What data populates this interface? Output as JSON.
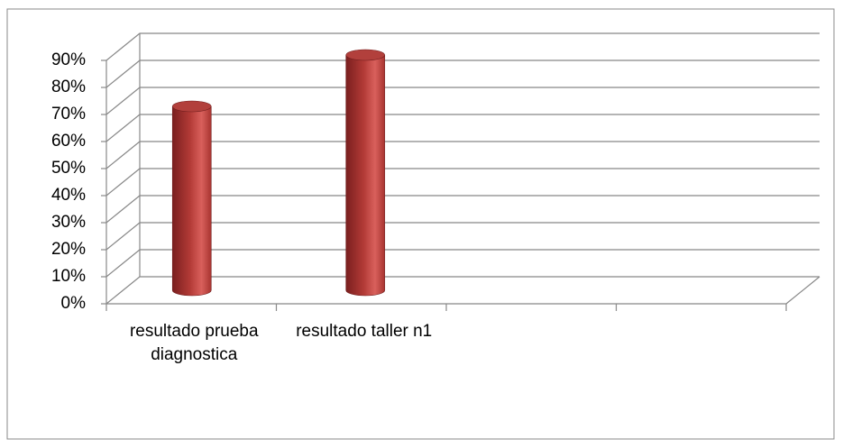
{
  "chart_data": {
    "type": "bar3d",
    "categories": [
      "resultado prueba diagnostica",
      "resultado taller n1",
      null,
      null
    ],
    "values": [
      68,
      87,
      null,
      null
    ],
    "color": "#c0504d",
    "ylim": [
      0,
      90
    ],
    "yticks": [
      {
        "value": 0,
        "label": "0%"
      },
      {
        "value": 10,
        "label": "10%"
      },
      {
        "value": 20,
        "label": "20%"
      },
      {
        "value": 30,
        "label": "30%"
      },
      {
        "value": 40,
        "label": "40%"
      },
      {
        "value": 50,
        "label": "50%"
      },
      {
        "value": 60,
        "label": "60%"
      },
      {
        "value": 70,
        "label": "70%"
      },
      {
        "value": 80,
        "label": "80%"
      },
      {
        "value": 90,
        "label": "90%"
      }
    ],
    "grid": true
  }
}
